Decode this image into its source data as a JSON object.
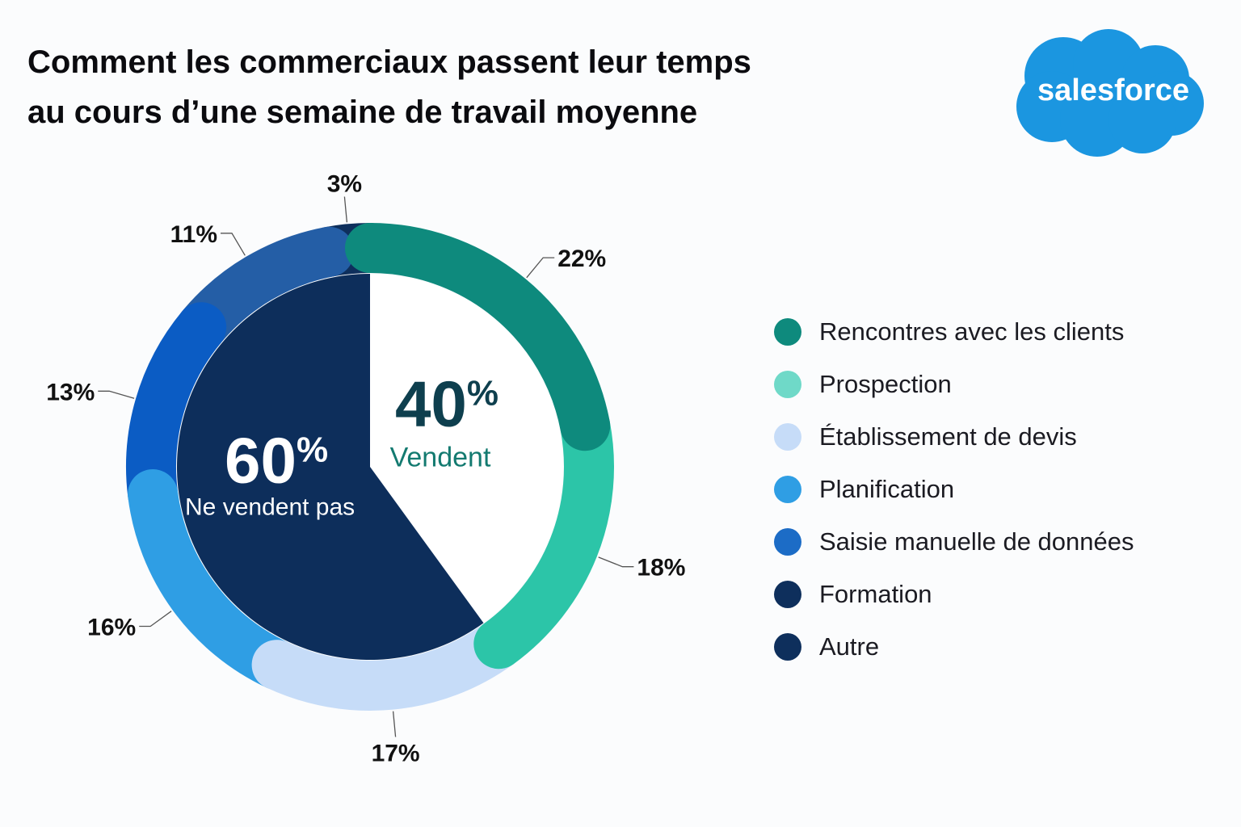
{
  "title": {
    "line1": "Comment les commerciaux passent leur temps",
    "line2": "au cours d’une semaine de travail moyenne"
  },
  "logo": {
    "text": "salesforce",
    "color": "#1b96e0"
  },
  "chart_data": {
    "type": "pie",
    "segments": [
      {
        "name": "Rencontres avec les clients",
        "value": 22,
        "label": "22%",
        "color": "#0e8a7d"
      },
      {
        "name": "Prospection",
        "value": 18,
        "label": "18%",
        "color": "#2cc5a8"
      },
      {
        "name": "Établissement de devis",
        "value": 17,
        "label": "17%",
        "color": "#c6dcf8"
      },
      {
        "name": "Planification",
        "value": 16,
        "label": "16%",
        "color": "#2f9ee4"
      },
      {
        "name": "Saisie manuelle de données",
        "value": 13,
        "label": "13%",
        "color": "#0b5cc4"
      },
      {
        "name": "Formation",
        "value": 11,
        "label": "11%",
        "color": "#245ea6"
      },
      {
        "name": "Autre",
        "value": 3,
        "label": "3%",
        "color": "#0e2f5c"
      }
    ],
    "inner": [
      {
        "value": 40,
        "label": "40%",
        "number": "40",
        "suffix": "%",
        "caption": "Vendent",
        "fill": "#ffffff",
        "text_color": "#0e3f4e",
        "caption_color": "#137a70"
      },
      {
        "value": 60,
        "label": "60%",
        "number": "60",
        "suffix": "%",
        "caption": "Ne vendent pas",
        "fill": "#0d2e5b",
        "text_color": "#ffffff",
        "caption_color": "#ffffff"
      }
    ],
    "legend_position": "right"
  },
  "legend": {
    "items": [
      {
        "label": "Rencontres avec les clients",
        "color": "#0e8a7d"
      },
      {
        "label": "Prospection",
        "color": "#6fd9c8"
      },
      {
        "label": "Établissement de devis",
        "color": "#c6dcf8"
      },
      {
        "label": "Planification",
        "color": "#2f9ee4"
      },
      {
        "label": "Saisie manuelle de données",
        "color": "#1c6cc6"
      },
      {
        "label": "Formation",
        "color": "#0e2f5c"
      },
      {
        "label": "Autre",
        "color": "#0e2f5c"
      }
    ]
  }
}
